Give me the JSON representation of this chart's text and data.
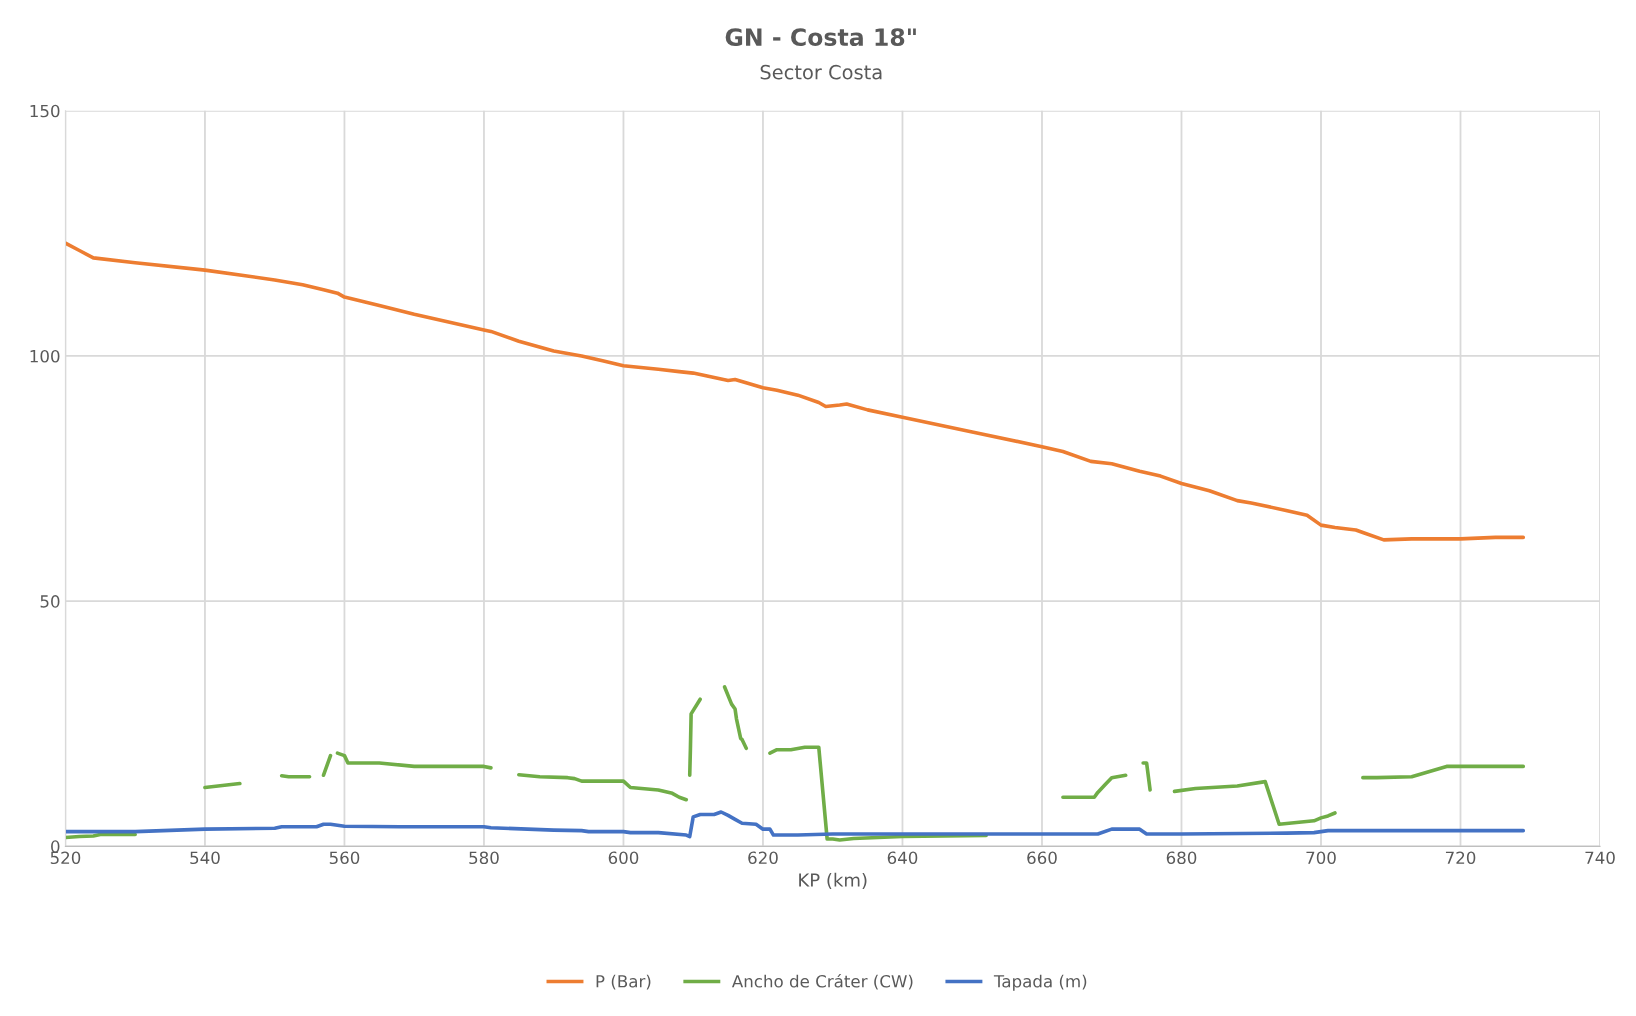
{
  "chart_data": {
    "type": "line",
    "title": "GN - Costa 18\"",
    "subtitle": "Sector Costa",
    "xlabel": "KP (km)",
    "xlim": [
      520,
      740
    ],
    "xticks": [
      520,
      540,
      560,
      580,
      600,
      620,
      640,
      660,
      680,
      700,
      720,
      740
    ],
    "ylim": [
      0,
      150
    ],
    "yticks": [
      0,
      50,
      100,
      150
    ],
    "grid": true,
    "legend": "bottom",
    "marker": "none",
    "line_style": "solid",
    "series": [
      {
        "name": "P (Bar)",
        "color": "#ed7d31",
        "x": [
          520,
          522,
          524,
          530,
          540,
          550,
          554,
          557,
          559,
          560,
          565,
          570,
          580,
          581,
          585,
          590,
          594,
          597,
          600,
          605,
          608,
          610,
          615,
          616,
          620,
          622,
          625,
          628,
          629,
          631,
          632,
          635,
          640,
          650,
          660,
          663,
          667,
          670,
          674,
          677,
          680,
          684,
          688,
          690,
          695,
          698,
          700,
          702,
          705,
          706,
          709,
          713,
          720,
          725,
          729
        ],
        "values": [
          123,
          121.5,
          120,
          119,
          117.5,
          115.5,
          114.5,
          113.5,
          112.8,
          112,
          110.3,
          108.5,
          105.3,
          105,
          103,
          101,
          100,
          99,
          98,
          97.3,
          96.8,
          96.5,
          95,
          95.2,
          93.5,
          93,
          92,
          90.5,
          89.7,
          90,
          90.2,
          89,
          87.5,
          84.5,
          81.5,
          80.5,
          78.5,
          78,
          76.5,
          75.5,
          74,
          72.5,
          70.5,
          70,
          68.5,
          67.5,
          65.5,
          65,
          64.5,
          64,
          62.5,
          62.7,
          62.7,
          63,
          63
        ]
      },
      {
        "name": "Ancho de Cráter (CW)",
        "color": "#70ad47",
        "x": [
          520,
          522,
          524,
          525,
          530,
          535,
          540,
          545,
          548,
          551,
          552,
          555,
          556,
          557,
          558,
          558.5,
          559,
          560,
          560.5,
          565,
          570,
          580,
          581,
          583,
          585,
          588,
          592,
          593,
          594,
          600,
          601,
          605,
          607,
          608,
          609,
          609.3,
          609.5,
          609.6,
          609.7,
          611,
          613,
          614.5,
          615.5,
          616,
          616.2,
          616.8,
          617,
          617.6,
          619,
          621,
          622,
          624,
          626,
          628,
          629.2,
          630,
          631,
          633,
          640,
          652,
          658,
          663,
          667.5,
          668,
          669,
          670,
          672,
          673,
          674.5,
          675,
          675.5,
          677,
          679,
          682,
          688,
          692,
          694,
          699,
          700,
          701,
          702,
          704,
          706,
          708,
          713,
          718,
          729
        ],
        "values": [
          1.8,
          2,
          2.1,
          2.4,
          2.4,
          null,
          12,
          12.8,
          null,
          14.4,
          14.2,
          14.2,
          null,
          14.5,
          18.5,
          null,
          19,
          18.5,
          17,
          17,
          16.3,
          16.3,
          16,
          null,
          14.6,
          14.2,
          14,
          13.8,
          13.3,
          13.3,
          12,
          11.5,
          10.8,
          10,
          9.5,
          null,
          14.5,
          20,
          27,
          30,
          null,
          32.5,
          29,
          28,
          26,
          22,
          21.8,
          20,
          null,
          19,
          19.7,
          19.7,
          20.2,
          20.2,
          1.5,
          1.5,
          1.3,
          1.6,
          2,
          2.2,
          null,
          10,
          10,
          11,
          12.5,
          14,
          14.5,
          null,
          17,
          17,
          11.5,
          null,
          11.2,
          11.8,
          12.3,
          13.2,
          4.5,
          5.2,
          5.8,
          6.2,
          6.8,
          null,
          14,
          14,
          14.2,
          16.3,
          16.3
        ]
      },
      {
        "name": "Tapada (m)",
        "color": "#4472c4",
        "x": [
          520,
          530,
          540,
          550,
          551,
          556,
          557,
          558,
          559,
          560,
          568,
          580,
          581,
          590,
          594,
          595,
          600,
          601,
          605,
          609,
          609.5,
          610,
          611,
          613,
          614,
          615,
          616,
          617,
          619,
          620,
          621,
          621.5,
          625,
          630,
          650,
          668,
          670,
          674,
          675,
          680,
          695,
          699,
          700,
          701,
          710,
          729
        ],
        "values": [
          3,
          3,
          3.5,
          3.7,
          4,
          4,
          4.5,
          4.5,
          4.3,
          4.1,
          4,
          4,
          3.8,
          3.3,
          3.2,
          3,
          3,
          2.8,
          2.8,
          2.3,
          2,
          6,
          6.5,
          6.5,
          7,
          6.3,
          5.5,
          4.7,
          4.5,
          3.5,
          3.5,
          2.3,
          2.3,
          2.5,
          2.5,
          2.5,
          3.5,
          3.5,
          2.5,
          2.5,
          2.7,
          2.8,
          3,
          3.2,
          3.2,
          3.2
        ]
      }
    ]
  }
}
